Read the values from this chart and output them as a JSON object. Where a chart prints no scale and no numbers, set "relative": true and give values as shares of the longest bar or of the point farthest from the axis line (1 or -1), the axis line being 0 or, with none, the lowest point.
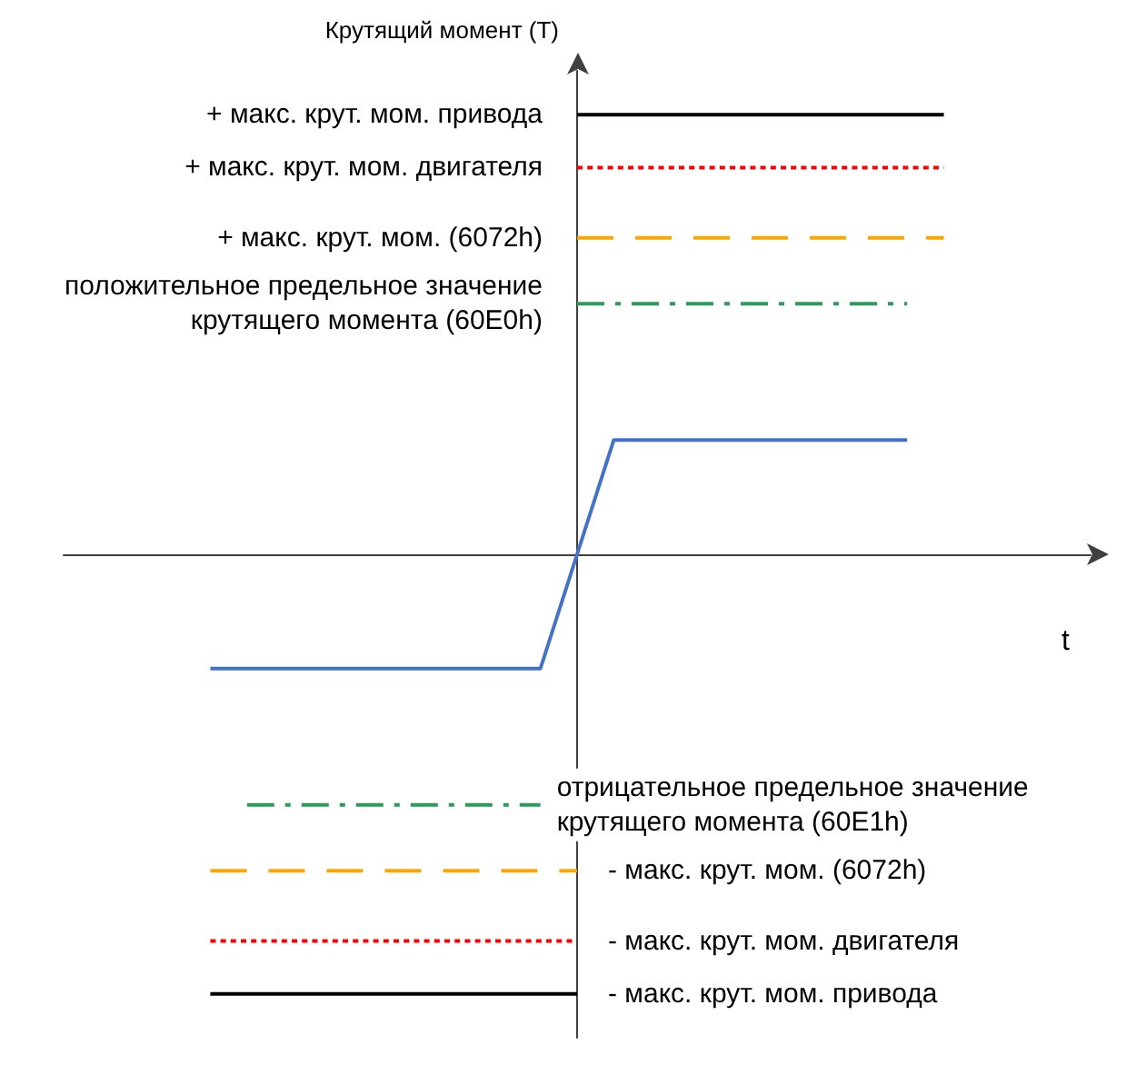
{
  "chart_data": {
    "type": "line",
    "relative": true,
    "ylabel": "Крутящий момент (T)",
    "xlabel": "t",
    "grid": false,
    "legend": false,
    "marker": "none",
    "categories": [
      null,
      null,
      null,
      null,
      null,
      null,
      null,
      null,
      null,
      null,
      null,
      null,
      null,
      null,
      null,
      null,
      null,
      null,
      null,
      null,
      null,
      null,
      null,
      null,
      null,
      null,
      null,
      null,
      null
    ],
    "series": [
      {
        "name": "+ макс. крут. мом. привода",
        "color": "#000000",
        "line_style": "solid",
        "values": [
          null,
          null,
          null,
          null,
          null,
          null,
          null,
          null,
          null,
          null,
          null,
          null,
          null,
          null,
          1,
          1,
          1,
          1,
          1,
          1,
          1,
          1,
          1,
          1,
          1,
          null,
          null,
          null,
          null
        ]
      },
      {
        "name": "+ макс. крут. мом. двигателя",
        "color": "#ff0000",
        "line_style": "dotted",
        "values": [
          null,
          null,
          null,
          null,
          null,
          null,
          null,
          null,
          null,
          null,
          null,
          null,
          null,
          null,
          0.88,
          0.88,
          0.88,
          0.88,
          0.88,
          0.88,
          0.88,
          0.88,
          0.88,
          0.88,
          0.88,
          null,
          null,
          null,
          null
        ]
      },
      {
        "name": "+ макс. крут. мом. (6072h)",
        "color": "#ffa500",
        "line_style": "dashed",
        "values": [
          null,
          null,
          null,
          null,
          null,
          null,
          null,
          null,
          null,
          null,
          null,
          null,
          null,
          null,
          0.72,
          0.72,
          0.72,
          0.72,
          0.72,
          0.72,
          0.72,
          0.72,
          0.72,
          0.72,
          0.72,
          null,
          null,
          null,
          null
        ]
      },
      {
        "name": "положительное предельное значение крутящего момента (60E0h)",
        "color": "#2e9a5c",
        "line_style": "dashdot",
        "values": [
          null,
          null,
          null,
          null,
          null,
          null,
          null,
          null,
          null,
          null,
          null,
          null,
          null,
          null,
          0.57,
          0.57,
          0.57,
          0.57,
          0.57,
          0.57,
          0.57,
          0.57,
          0.57,
          0.57,
          null,
          null,
          null,
          null,
          null
        ]
      },
      {
        "color": "#4472c4",
        "line_style": "solid",
        "values": [
          null,
          null,
          null,
          null,
          -0.26,
          -0.26,
          -0.26,
          -0.26,
          -0.26,
          -0.26,
          -0.26,
          -0.26,
          -0.26,
          -0.26,
          0,
          0.26,
          0.26,
          0.26,
          0.26,
          0.26,
          0.26,
          0.26,
          0.26,
          0.26,
          null,
          null,
          null,
          null,
          null
        ]
      },
      {
        "name": "отрицательное предельное значение крутящего момента (60E1h)",
        "color": "#2e9a5c",
        "line_style": "dashdot",
        "values": [
          null,
          null,
          null,
          null,
          null,
          -0.57,
          -0.57,
          -0.57,
          -0.57,
          -0.57,
          -0.57,
          -0.57,
          -0.57,
          -0.57,
          null,
          null,
          null,
          null,
          null,
          null,
          null,
          null,
          null,
          null,
          null,
          null,
          null,
          null,
          null
        ]
      },
      {
        "name": "- макс. крут. мом. (6072h)",
        "color": "#ffa500",
        "line_style": "dashed",
        "values": [
          null,
          null,
          null,
          null,
          -0.72,
          -0.72,
          -0.72,
          -0.72,
          -0.72,
          -0.72,
          -0.72,
          -0.72,
          -0.72,
          -0.72,
          -0.72,
          null,
          null,
          null,
          null,
          null,
          null,
          null,
          null,
          null,
          null,
          null,
          null,
          null,
          null
        ]
      },
      {
        "name": "- макс. крут. мом. двигателя",
        "color": "#ff0000",
        "line_style": "dotted",
        "values": [
          null,
          null,
          null,
          null,
          -0.88,
          -0.88,
          -0.88,
          -0.88,
          -0.88,
          -0.88,
          -0.88,
          -0.88,
          -0.88,
          -0.88,
          -0.88,
          null,
          null,
          null,
          null,
          null,
          null,
          null,
          null,
          null,
          null,
          null,
          null,
          null,
          null
        ]
      },
      {
        "name": "- макс. крут. мом. привода",
        "color": "#000000",
        "line_style": "solid",
        "values": [
          null,
          null,
          null,
          null,
          -1,
          -1,
          -1,
          -1,
          -1,
          -1,
          -1,
          -1,
          -1,
          -1,
          -1,
          null,
          null,
          null,
          null,
          null,
          null,
          null,
          null,
          null,
          null,
          null,
          null,
          null,
          null
        ]
      }
    ]
  }
}
